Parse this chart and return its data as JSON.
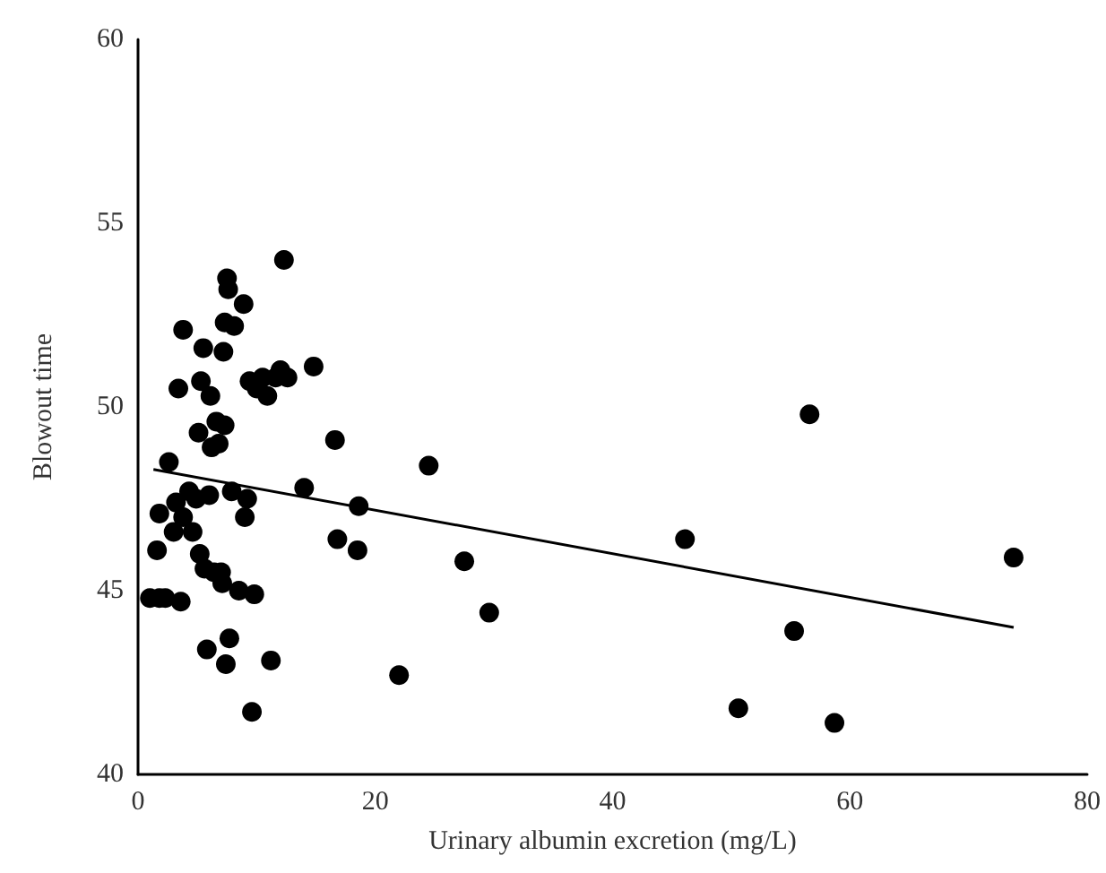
{
  "chart_data": {
    "type": "scatter",
    "xlabel": "Urinary albumin excretion (mg/L)",
    "ylabel": "Blowout time",
    "xlim": [
      0,
      80
    ],
    "xticks": [
      0,
      20,
      40,
      60,
      80
    ],
    "ylim": [
      40,
      60
    ],
    "yticks": [
      40,
      45,
      50,
      55,
      60
    ],
    "grid": false,
    "marker": "circle",
    "series": [
      {
        "color": "#000000",
        "x": [
          1,
          1.8,
          2.3,
          1.6,
          1.8,
          2.6,
          3,
          3.2,
          3.6,
          3.8,
          3.4,
          3.8,
          4.3,
          4.6,
          4.9,
          5.1,
          5.3,
          5.5,
          5.2,
          5.6,
          5.8,
          6,
          6.1,
          6.2,
          6.4,
          6.6,
          6.8,
          7,
          7.1,
          7.2,
          7.3,
          7.5,
          7.6,
          7.3,
          7.4,
          7.7,
          7.9,
          8.1,
          8.5,
          8.9,
          9,
          9.2,
          9.4,
          9.6,
          9.8,
          10,
          10.5,
          10.9,
          11.2,
          11.6,
          12,
          12.3,
          12.6,
          14,
          14.8,
          16.6,
          16.8,
          18.6,
          18.5,
          22,
          24.5,
          27.5,
          29.6,
          46.1,
          50.6,
          55.3,
          56.6,
          58.7,
          73.8
        ],
        "values": [
          44.8,
          44.8,
          44.8,
          46.1,
          47.1,
          48.5,
          46.6,
          47.4,
          44.7,
          47,
          50.5,
          52.1,
          47.7,
          46.6,
          47.5,
          49.3,
          50.7,
          51.6,
          46,
          45.6,
          43.4,
          47.6,
          50.3,
          48.9,
          45.5,
          49.6,
          49,
          45.5,
          45.2,
          51.5,
          52.3,
          53.5,
          53.2,
          49.5,
          43,
          43.7,
          47.7,
          52.2,
          45,
          52.8,
          47,
          47.5,
          50.7,
          41.7,
          44.9,
          50.5,
          50.8,
          50.3,
          43.1,
          50.8,
          51,
          54,
          50.8,
          47.8,
          51.1,
          49.1,
          46.4,
          47.3,
          46.1,
          42.7,
          48.4,
          45.8,
          44.4,
          46.4,
          41.8,
          43.9,
          49.8,
          41.4,
          45.9
        ]
      },
      {
        "type": "line",
        "color": "#000000",
        "marker": "none",
        "x": [
          1.3,
          73.8
        ],
        "values": [
          48.3,
          44
        ]
      }
    ]
  }
}
